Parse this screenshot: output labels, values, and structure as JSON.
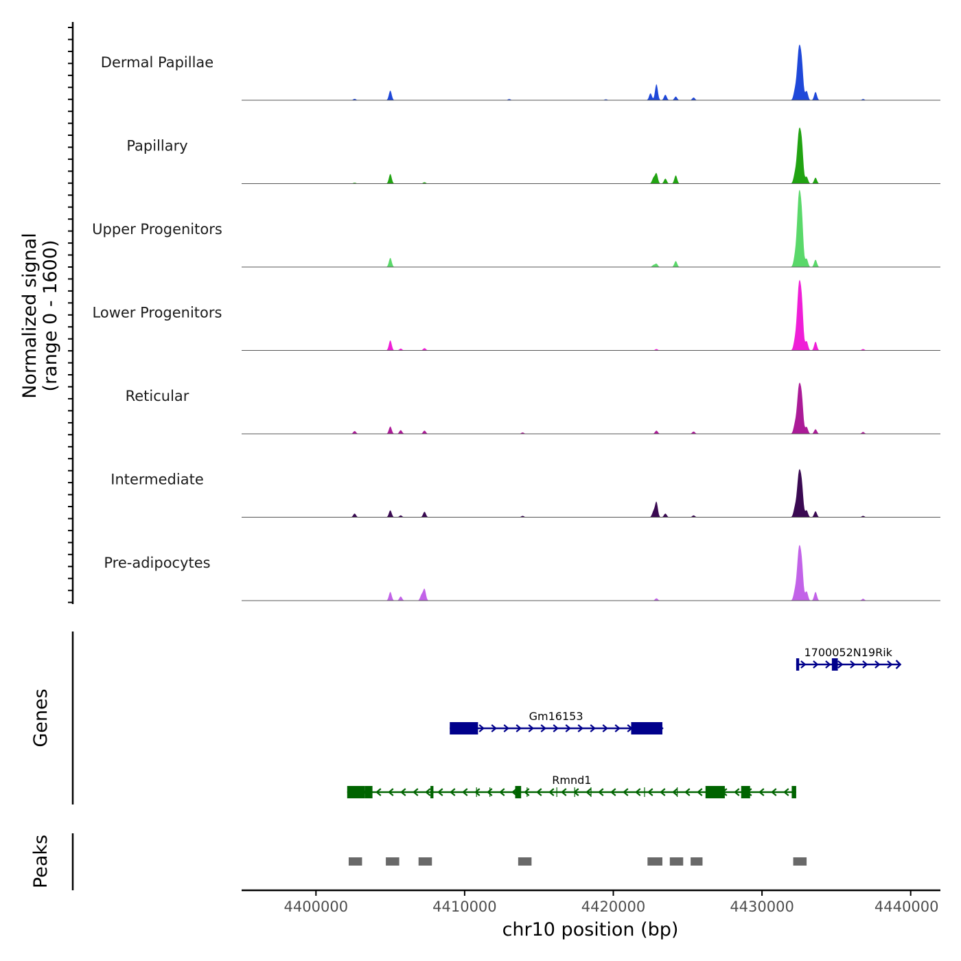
{
  "chart_data": {
    "type": "area",
    "title": "",
    "xlabel": "chr10 position (bp)",
    "ylabel": "Normalized signal",
    "ylabel_sub": "(range 0 - 1600)",
    "xlim": [
      4395000,
      4442000
    ],
    "ylim": [
      0,
      1600
    ],
    "x_ticks": [
      4400000,
      4410000,
      4420000,
      4430000,
      4440000
    ],
    "x_tick_labels": [
      "4400000",
      "4410000",
      "4420000",
      "4430000",
      "4440000"
    ],
    "series": [
      {
        "name": "Dermal Papillae",
        "color": "#1f48d9",
        "peaks": [
          [
            4402600,
            30
          ],
          [
            4405000,
            210
          ],
          [
            4413000,
            25
          ],
          [
            4419500,
            20
          ],
          [
            4422500,
            150
          ],
          [
            4422900,
            350
          ],
          [
            4423500,
            120
          ],
          [
            4424200,
            80
          ],
          [
            4425400,
            60
          ],
          [
            4432200,
            150
          ],
          [
            4432500,
            1150
          ],
          [
            4432700,
            450
          ],
          [
            4433000,
            200
          ],
          [
            4433600,
            180
          ],
          [
            4436800,
            25
          ]
        ]
      },
      {
        "name": "Papillary",
        "color": "#21a312",
        "peaks": [
          [
            4402600,
            20
          ],
          [
            4405000,
            210
          ],
          [
            4407300,
            30
          ],
          [
            4422700,
            120
          ],
          [
            4422900,
            220
          ],
          [
            4423500,
            110
          ],
          [
            4424200,
            180
          ],
          [
            4432200,
            150
          ],
          [
            4432500,
            1150
          ],
          [
            4432700,
            500
          ],
          [
            4433000,
            150
          ],
          [
            4433600,
            130
          ]
        ]
      },
      {
        "name": "Upper Progenitors",
        "color": "#5ad86a",
        "peaks": [
          [
            4405000,
            200
          ],
          [
            4422700,
            40
          ],
          [
            4422900,
            70
          ],
          [
            4424200,
            130
          ],
          [
            4432200,
            150
          ],
          [
            4432500,
            1600
          ],
          [
            4432700,
            600
          ],
          [
            4433000,
            180
          ],
          [
            4433600,
            160
          ]
        ]
      },
      {
        "name": "Lower Progenitors",
        "color": "#ef1fd7",
        "peaks": [
          [
            4405000,
            220
          ],
          [
            4405700,
            40
          ],
          [
            4407300,
            50
          ],
          [
            4422900,
            30
          ],
          [
            4432200,
            150
          ],
          [
            4432500,
            1450
          ],
          [
            4432700,
            600
          ],
          [
            4433000,
            200
          ],
          [
            4433600,
            190
          ],
          [
            4436800,
            30
          ]
        ]
      },
      {
        "name": "Reticular",
        "color": "#ab1b97",
        "peaks": [
          [
            4402600,
            60
          ],
          [
            4405000,
            160
          ],
          [
            4405700,
            80
          ],
          [
            4407300,
            70
          ],
          [
            4413900,
            30
          ],
          [
            4422900,
            70
          ],
          [
            4425400,
            50
          ],
          [
            4432200,
            150
          ],
          [
            4432500,
            1050
          ],
          [
            4432700,
            450
          ],
          [
            4433000,
            150
          ],
          [
            4433600,
            100
          ],
          [
            4436800,
            40
          ]
        ]
      },
      {
        "name": "Intermediate",
        "color": "#3a0a52",
        "peaks": [
          [
            4402600,
            80
          ],
          [
            4405000,
            150
          ],
          [
            4405700,
            40
          ],
          [
            4407300,
            120
          ],
          [
            4413900,
            30
          ],
          [
            4422700,
            120
          ],
          [
            4422900,
            330
          ],
          [
            4423500,
            80
          ],
          [
            4425400,
            40
          ],
          [
            4432200,
            150
          ],
          [
            4432500,
            990
          ],
          [
            4432700,
            400
          ],
          [
            4433000,
            150
          ],
          [
            4433600,
            130
          ],
          [
            4436800,
            30
          ]
        ]
      },
      {
        "name": "Pre-adipocytes",
        "color": "#c263e8",
        "peaks": [
          [
            4405000,
            190
          ],
          [
            4405700,
            90
          ],
          [
            4407100,
            120
          ],
          [
            4407300,
            250
          ],
          [
            4422900,
            50
          ],
          [
            4432200,
            150
          ],
          [
            4432500,
            1150
          ],
          [
            4432700,
            450
          ],
          [
            4433000,
            200
          ],
          [
            4433600,
            190
          ],
          [
            4436800,
            40
          ]
        ]
      }
    ],
    "genes": [
      {
        "name": "1700052N19Rik",
        "strand": "+",
        "color": "#00008b",
        "start": 4432300,
        "end": 4439300,
        "exons": [
          [
            4432300,
            4432500
          ],
          [
            4434700,
            4435100
          ]
        ]
      },
      {
        "name": "Gm16153",
        "strand": "+",
        "color": "#00008b",
        "start": 4409000,
        "end": 4423300,
        "exons": [
          [
            4409000,
            4410900
          ],
          [
            4421200,
            4423300
          ]
        ]
      },
      {
        "name": "Rmnd1",
        "strand": "-",
        "color": "#006400",
        "start": 4402100,
        "end": 4432300,
        "exons": [
          [
            4402100,
            4403300
          ],
          [
            4403300,
            4403800
          ],
          [
            4407700,
            4407900
          ],
          [
            4413400,
            4413800
          ],
          [
            4426200,
            4427500
          ],
          [
            4428600,
            4429200
          ],
          [
            4432000,
            4432300
          ]
        ],
        "introns_marks": [
          4410800,
          4411700,
          4414200,
          4416200,
          4417400,
          4418500,
          4422100,
          4424300
        ]
      }
    ],
    "peaks": [
      [
        4402200,
        4403100
      ],
      [
        4404700,
        4405600
      ],
      [
        4406900,
        4407800
      ],
      [
        4413600,
        4414500
      ],
      [
        4422300,
        4423300
      ],
      [
        4423800,
        4424700
      ],
      [
        4425200,
        4426000
      ],
      [
        4432100,
        4433000
      ]
    ],
    "track_labels": {
      "genes": "Genes",
      "peaks": "Peaks"
    }
  }
}
